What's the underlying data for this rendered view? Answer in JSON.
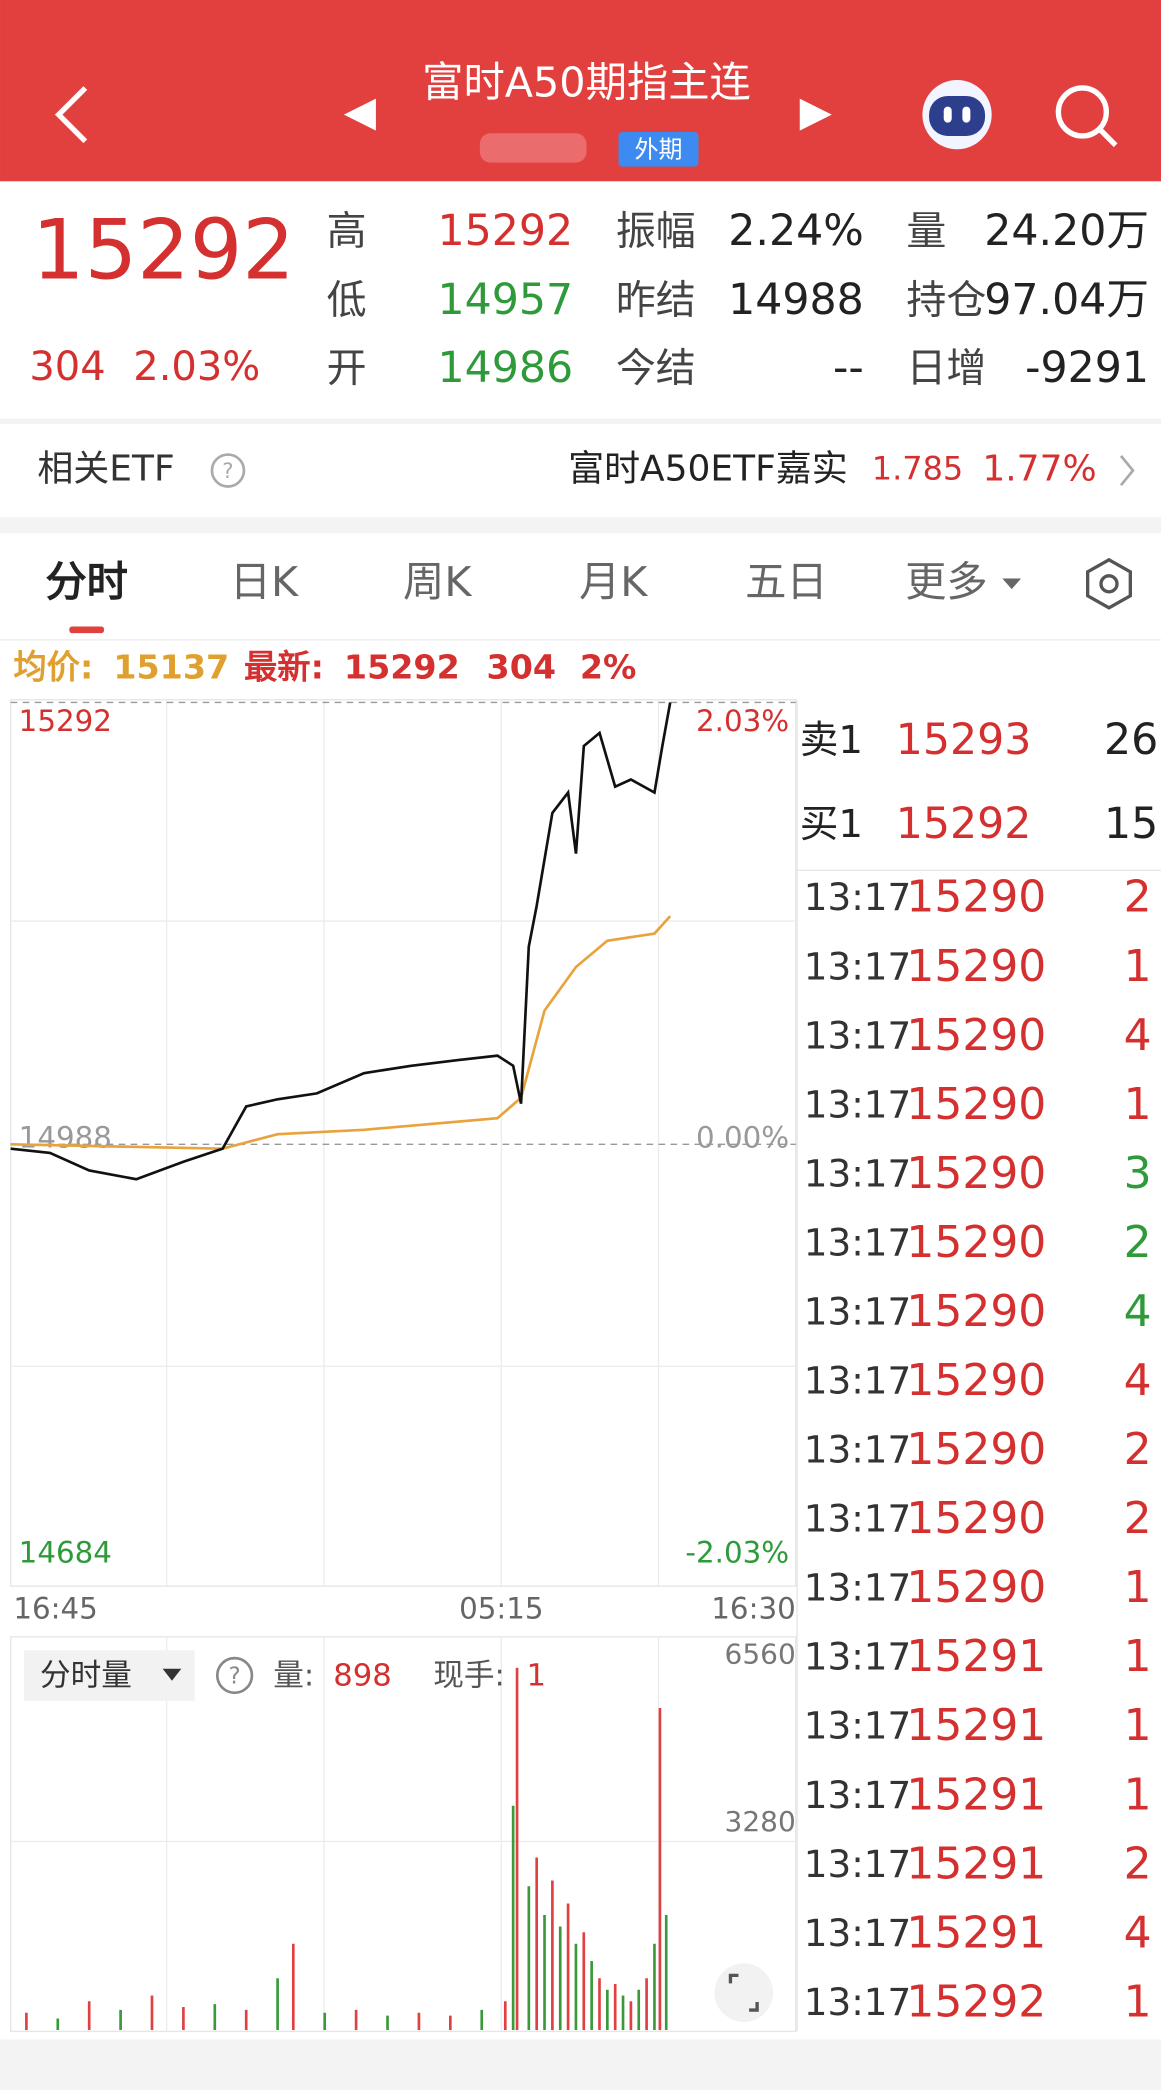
{
  "header": {
    "title": "富时A50期指主连",
    "tag": "外期"
  },
  "quote": {
    "price": "15292",
    "change": "304",
    "change_pct": "2.03%",
    "stats": [
      {
        "label": "高",
        "value": "15292",
        "color": "#d43030"
      },
      {
        "label": "振幅",
        "value": "2.24%",
        "color": "#222222"
      },
      {
        "label": "量",
        "value": "24.20万",
        "color": "#222222"
      },
      {
        "label": "低",
        "value": "14957",
        "color": "#2e9a3a"
      },
      {
        "label": "昨结",
        "value": "14988",
        "color": "#222222"
      },
      {
        "label": "持仓",
        "value": "97.04万",
        "color": "#222222"
      },
      {
        "label": "开",
        "value": "14986",
        "color": "#2e9a3a"
      },
      {
        "label": "今结",
        "value": "--",
        "color": "#222222"
      },
      {
        "label": "日增",
        "value": "-9291",
        "color": "#222222"
      }
    ]
  },
  "etf": {
    "label": "相关ETF",
    "name": "富时A50ETF嘉实",
    "price": "1.785",
    "pct": "1.77%"
  },
  "tabs": [
    "分时",
    "日K",
    "周K",
    "月K",
    "五日",
    "更多"
  ],
  "info": {
    "avg_label": "均价:",
    "avg": "15137",
    "latest_label": "最新:",
    "latest": "15292",
    "change": "304",
    "pct": "2%"
  },
  "chart_data": [
    {
      "type": "line",
      "xlim": [
        0,
        100
      ],
      "xticks": [
        {
          "value": 0,
          "label": "16:45"
        },
        {
          "value": 62.5,
          "label": "05:15"
        },
        {
          "value": 100,
          "label": "16:30"
        }
      ],
      "ylim": [
        14684,
        15292
      ],
      "yticks": [
        14684,
        14988,
        15292
      ],
      "y2lim": [
        -2.03,
        2.03
      ],
      "y2ticks": [
        {
          "value": -2.03,
          "label": "-2.03%"
        },
        {
          "value": 0,
          "label": "0.00%"
        },
        {
          "value": 2.03,
          "label": "2.03%"
        }
      ],
      "series": [
        {
          "color": "#111111",
          "x": [
            0,
            5,
            10,
            16,
            22,
            27,
            30,
            34,
            39,
            45,
            51,
            57,
            62,
            64,
            65,
            66,
            67,
            69,
            71,
            72,
            73,
            75,
            77,
            79,
            82,
            83,
            84
          ],
          "values": [
            14985,
            14982,
            14970,
            14964,
            14976,
            14985,
            15014,
            15019,
            15023,
            15037,
            15042,
            15046,
            15049,
            15042,
            15016,
            15124,
            15152,
            15216,
            15230,
            15188,
            15262,
            15271,
            15234,
            15239,
            15230,
            15262,
            15292
          ]
        },
        {
          "color": "#e8a33d",
          "x": [
            0,
            27,
            34,
            45,
            62,
            65,
            68,
            72,
            76,
            82,
            84
          ],
          "values": [
            14988,
            14985,
            14995,
            14998,
            15006,
            15020,
            15080,
            15110,
            15128,
            15133,
            15145
          ]
        }
      ]
    },
    {
      "type": "bar",
      "xlim": [
        0,
        100
      ],
      "ylim": [
        0,
        6560
      ],
      "yticks": [
        3280,
        6560
      ],
      "x": [
        2,
        6,
        10,
        14,
        18,
        22,
        26,
        30,
        34,
        36,
        40,
        44,
        48,
        52,
        56,
        60,
        63,
        64,
        64.5,
        66,
        67,
        68,
        69,
        70,
        71,
        72,
        73,
        74,
        75,
        76,
        77,
        78,
        79,
        80,
        81,
        82,
        82.7,
        83.5
      ],
      "values": [
        300,
        200,
        500,
        350,
        600,
        400,
        450,
        350,
        900,
        1500,
        300,
        350,
        250,
        300,
        250,
        350,
        500,
        3900,
        6300,
        2500,
        3000,
        2000,
        2600,
        1800,
        2200,
        1500,
        1700,
        1200,
        900,
        700,
        800,
        600,
        500,
        700,
        900,
        1500,
        5600,
        2000
      ],
      "colors": [
        "#e04040",
        "#3a9a3a",
        "#e04040",
        "#3a9a3a",
        "#e04040",
        "#e04040",
        "#3a9a3a",
        "#e04040",
        "#3a9a3a",
        "#e04040",
        "#3a9a3a",
        "#e04040",
        "#3a9a3a",
        "#e04040",
        "#e04040",
        "#3a9a3a",
        "#e04040",
        "#3a9a3a",
        "#e04040",
        "#3a9a3a",
        "#e04040",
        "#3a9a3a",
        "#e04040",
        "#3a9a3a",
        "#e04040",
        "#3a9a3a",
        "#e04040",
        "#3a9a3a",
        "#e04040",
        "#3a9a3a",
        "#e04040",
        "#3a9a3a",
        "#e04040",
        "#3a9a3a",
        "#e04040",
        "#3a9a3a",
        "#e04040",
        "#3a9a3a"
      ]
    }
  ],
  "volume_info": {
    "label": "分时量",
    "qty_label": "量:",
    "qty": "898",
    "hand_label": "现手:",
    "hand": "1"
  },
  "order_book": [
    {
      "label": "卖1",
      "price": "15293",
      "qty": "26"
    },
    {
      "label": "买1",
      "price": "15292",
      "qty": "15"
    }
  ],
  "trades": [
    {
      "time": "13:17",
      "price": "15290",
      "qty": "2",
      "color": "#d43030"
    },
    {
      "time": "13:17",
      "price": "15290",
      "qty": "1",
      "color": "#d43030"
    },
    {
      "time": "13:17",
      "price": "15290",
      "qty": "4",
      "color": "#d43030"
    },
    {
      "time": "13:17",
      "price": "15290",
      "qty": "1",
      "color": "#d43030"
    },
    {
      "time": "13:17",
      "price": "15290",
      "qty": "3",
      "color": "#2e9a3a"
    },
    {
      "time": "13:17",
      "price": "15290",
      "qty": "2",
      "color": "#2e9a3a"
    },
    {
      "time": "13:17",
      "price": "15290",
      "qty": "4",
      "color": "#2e9a3a"
    },
    {
      "time": "13:17",
      "price": "15290",
      "qty": "4",
      "color": "#d43030"
    },
    {
      "time": "13:17",
      "price": "15290",
      "qty": "2",
      "color": "#d43030"
    },
    {
      "time": "13:17",
      "price": "15290",
      "qty": "2",
      "color": "#d43030"
    },
    {
      "time": "13:17",
      "price": "15290",
      "qty": "1",
      "color": "#d43030"
    },
    {
      "time": "13:17",
      "price": "15291",
      "qty": "1",
      "color": "#d43030"
    },
    {
      "time": "13:17",
      "price": "15291",
      "qty": "1",
      "color": "#d43030"
    },
    {
      "time": "13:17",
      "price": "15291",
      "qty": "1",
      "color": "#d43030"
    },
    {
      "time": "13:17",
      "price": "15291",
      "qty": "2",
      "color": "#d43030"
    },
    {
      "time": "13:17",
      "price": "15291",
      "qty": "4",
      "color": "#d43030"
    },
    {
      "time": "13:17",
      "price": "15292",
      "qty": "1",
      "color": "#d43030"
    }
  ]
}
